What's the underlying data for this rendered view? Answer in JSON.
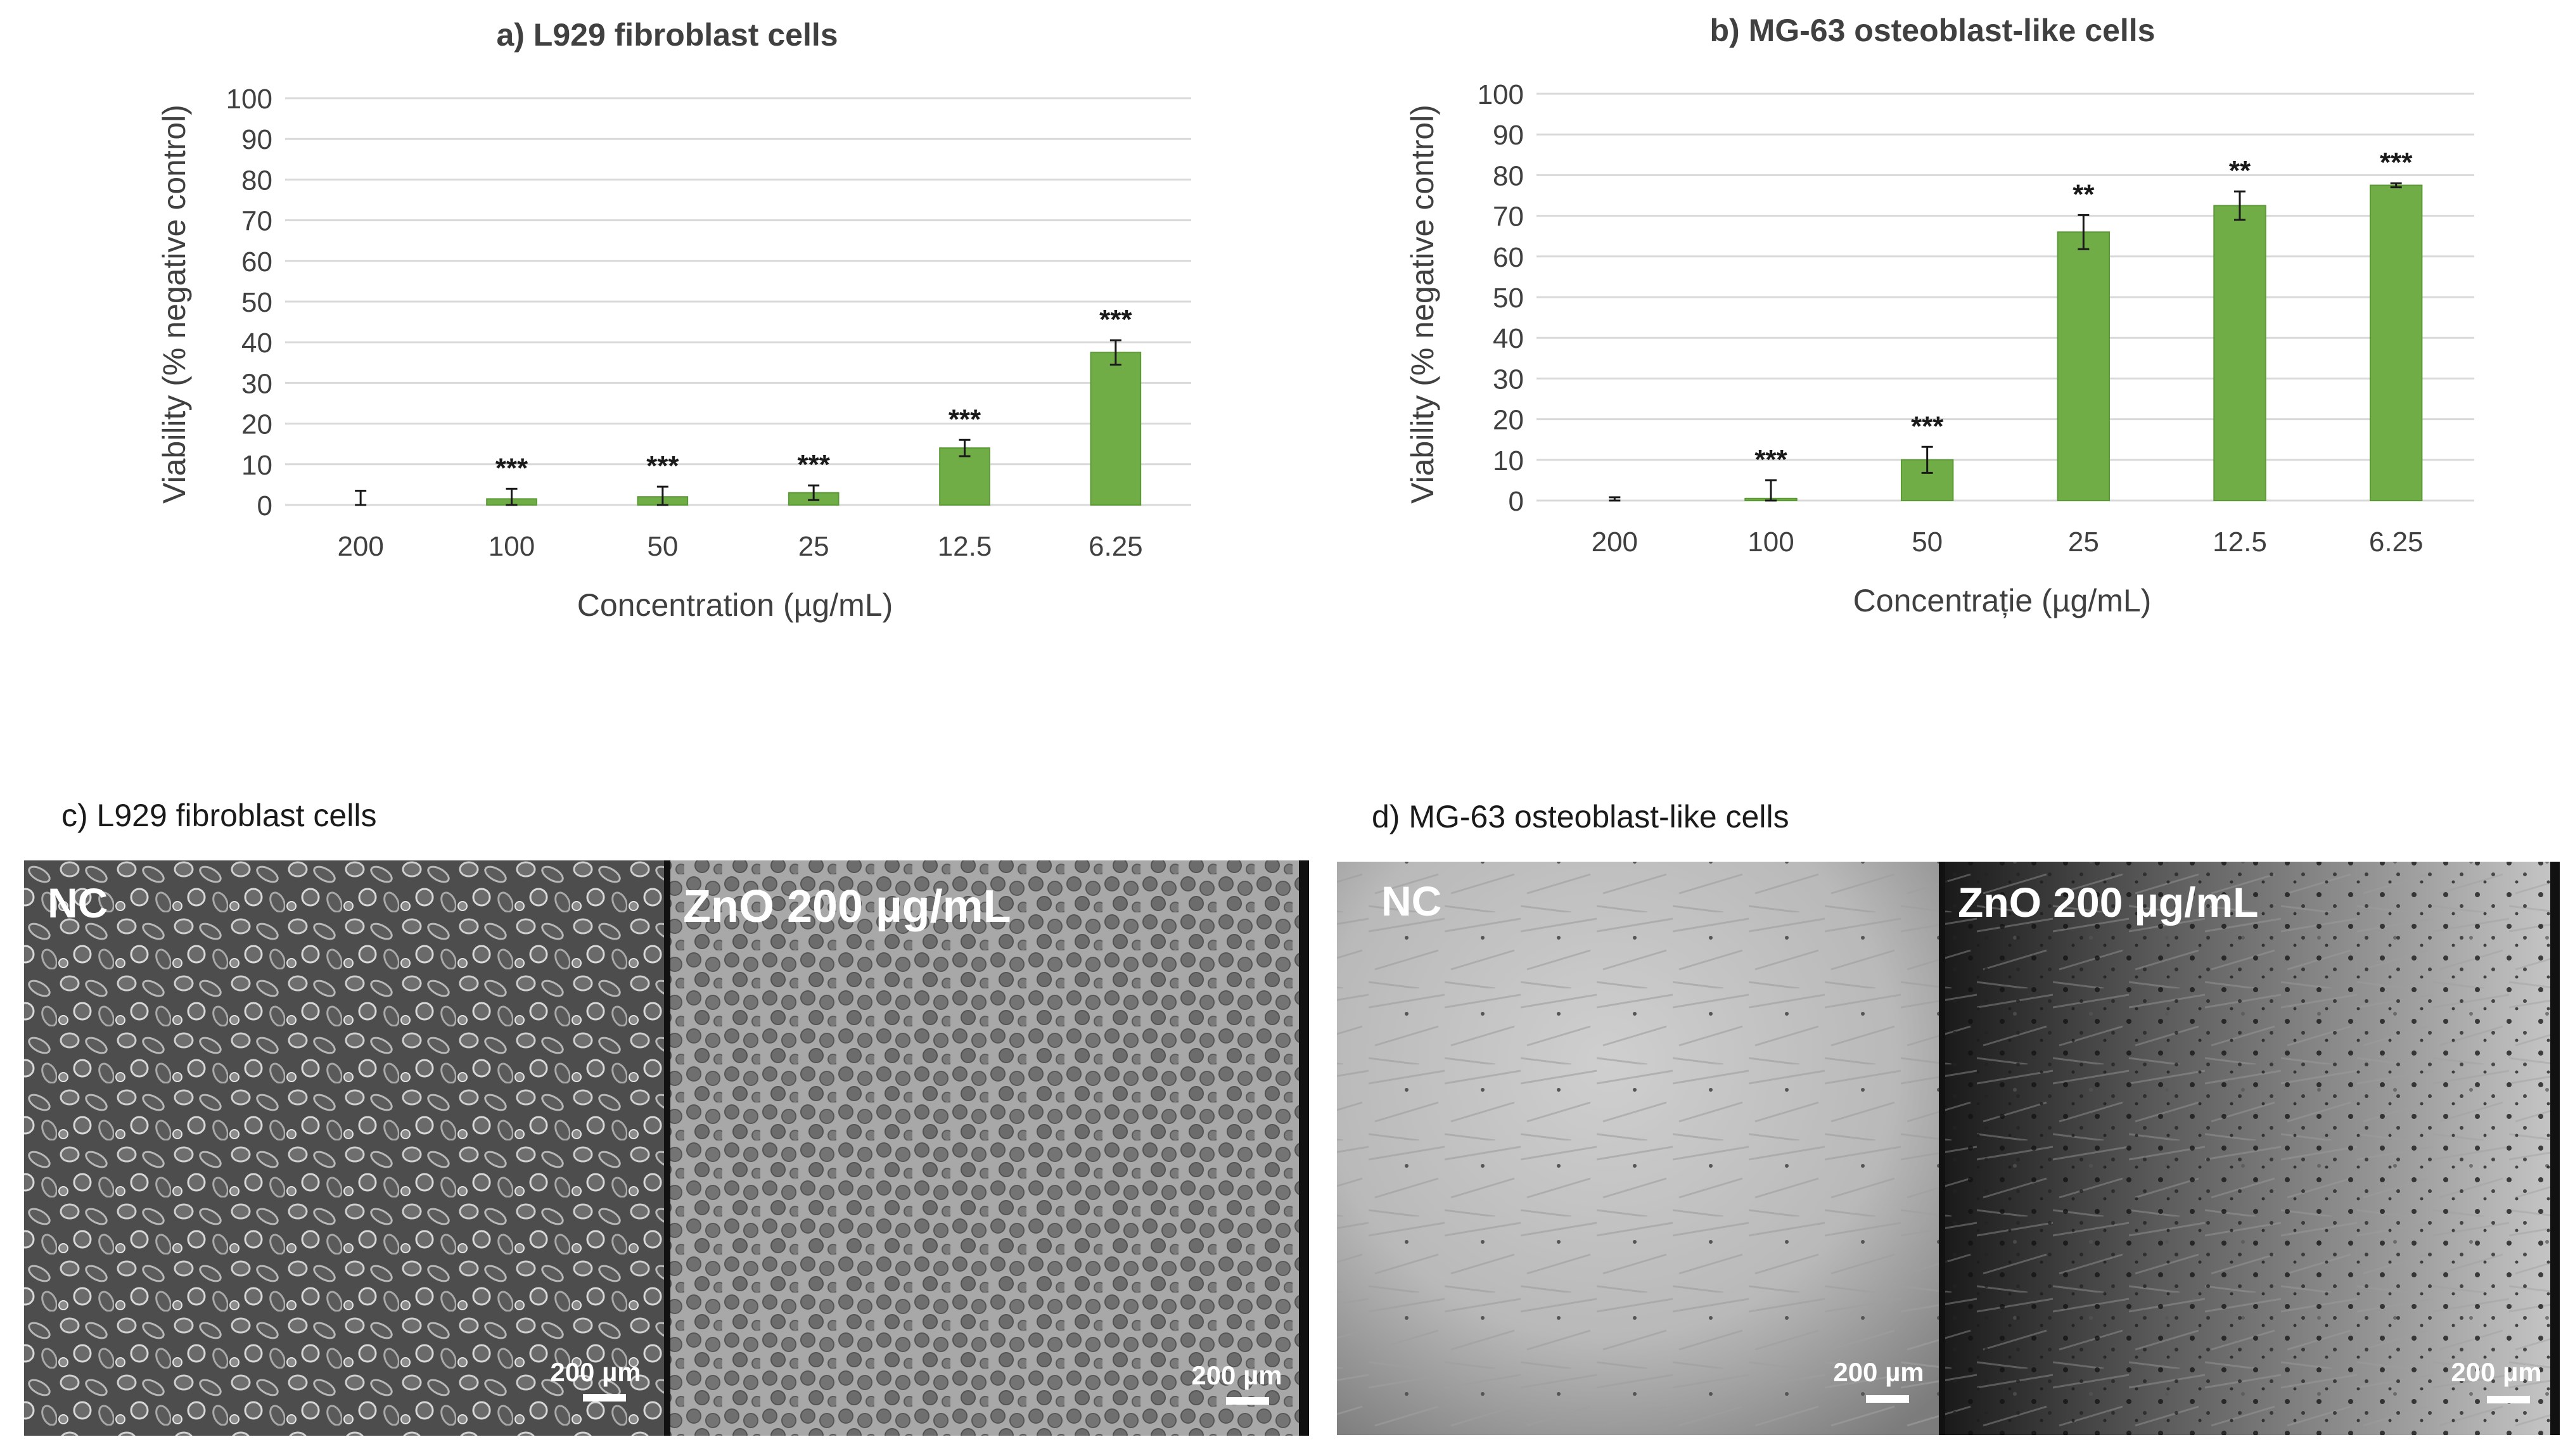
{
  "chart_data": [
    {
      "type": "bar",
      "title": "a) L929 fibroblast cells",
      "xlabel": "Concentration (µg/mL)",
      "ylabel": "Viability (% negative control)",
      "ylim": [
        0,
        100
      ],
      "yticks": [
        "0",
        "10",
        "20",
        "30",
        "40",
        "50",
        "60",
        "70",
        "80",
        "90",
        "100"
      ],
      "categories": [
        "200",
        "100",
        "50",
        "25",
        "12.5",
        "6.25"
      ],
      "values": [
        0,
        1.5,
        2,
        3,
        14,
        37.5
      ],
      "errors": [
        3.5,
        2.5,
        2.5,
        1.8,
        2,
        3
      ],
      "significance": [
        "",
        "***",
        "***",
        "***",
        "***",
        "***"
      ],
      "grid": true,
      "bar_color": "#70ad47"
    },
    {
      "type": "bar",
      "title": "b) MG-63 osteoblast-like cells",
      "xlabel": "Concentrație (µg/mL)",
      "ylabel": "Viability (% negative control)",
      "ylim": [
        0,
        100
      ],
      "yticks": [
        "0",
        "10",
        "20",
        "30",
        "40",
        "50",
        "60",
        "70",
        "80",
        "90",
        "100"
      ],
      "categories": [
        "200",
        "100",
        "50",
        "25",
        "12.5",
        "6.25"
      ],
      "values": [
        0,
        0.5,
        10,
        66,
        72.5,
        77.5
      ],
      "errors": [
        0.8,
        4.5,
        3.2,
        4.2,
        3.5,
        0.5
      ],
      "significance": [
        "",
        "***",
        "***",
        "**",
        "**",
        "***"
      ],
      "grid": true,
      "bar_color": "#70ad47"
    }
  ],
  "micrographs": {
    "c_title": "c) L929 fibroblast cells",
    "d_title": "d) MG-63 osteoblast-like cells",
    "panels": [
      {
        "label": "NC",
        "scale": "200 µm"
      },
      {
        "label": "ZnO 200 µg/mL",
        "scale": "200 µm"
      },
      {
        "label": "NC",
        "scale": "200 µm"
      },
      {
        "label": "ZnO 200 µg/mL",
        "scale": "200 µm"
      }
    ]
  }
}
